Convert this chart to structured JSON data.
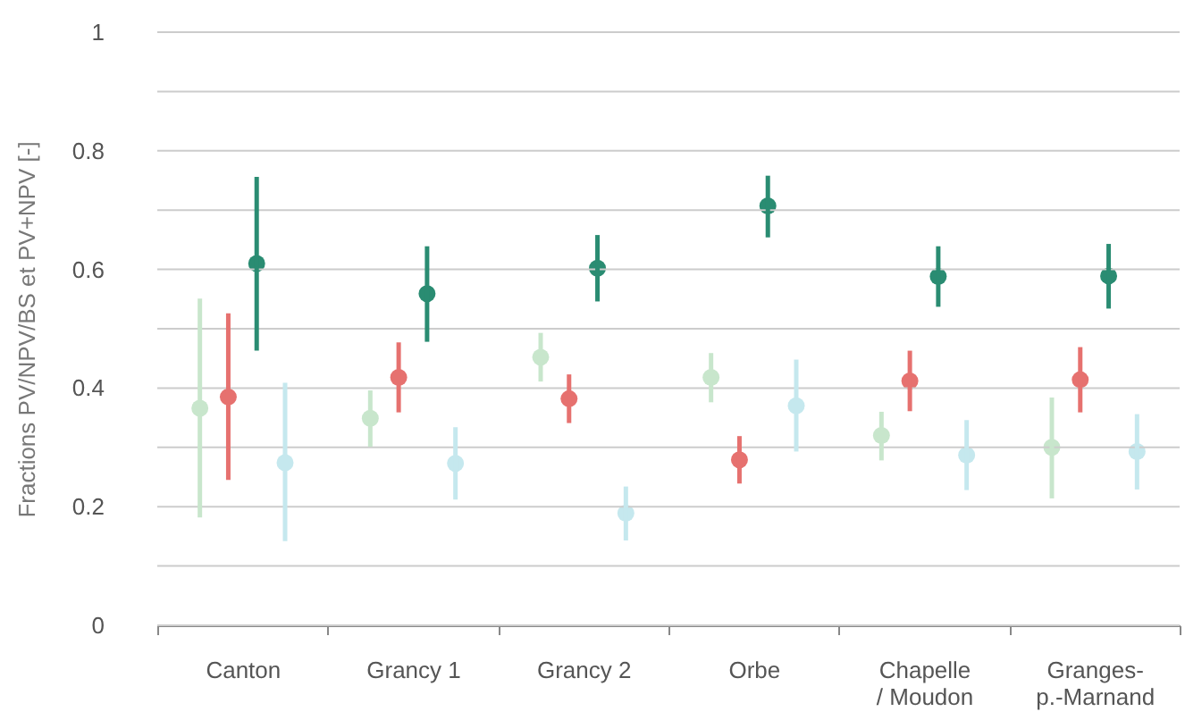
{
  "chart_data": {
    "type": "scatter",
    "ylabel": "Fractions PV/NPV/BS et PV+NPV [-]",
    "categories": [
      "Canton",
      "Grancy 1",
      "Grancy 2",
      "Orbe",
      "Chapelle\n/ Moudon",
      "Granges-\np.-Marnand"
    ],
    "ylim": [
      0,
      1
    ],
    "yticks": [
      0,
      {
        "value": 0.1,
        "label": null
      },
      0.2,
      {
        "value": 0.3,
        "label": null
      },
      0.4,
      {
        "value": 0.5,
        "label": null
      },
      0.6,
      {
        "value": 0.7,
        "label": null
      },
      0.8,
      {
        "value": 0.9,
        "label": null
      },
      1
    ],
    "grid": "y",
    "marker": "circle",
    "series": [
      {
        "color": "#c8e6cc",
        "values": [
          0.366,
          0.349,
          0.452,
          0.418,
          0.32,
          0.3
        ],
        "errors": [
          [
            0.182,
            0.551
          ],
          [
            0.301,
            0.396
          ],
          [
            0.411,
            0.493
          ],
          [
            0.376,
            0.459
          ],
          [
            0.278,
            0.36
          ],
          [
            0.214,
            0.384
          ]
        ]
      },
      {
        "color": "#e6716f",
        "values": [
          0.385,
          0.418,
          0.382,
          0.279,
          0.412,
          0.414
        ],
        "errors": [
          [
            0.245,
            0.526
          ],
          [
            0.359,
            0.477
          ],
          [
            0.341,
            0.423
          ],
          [
            0.239,
            0.319
          ],
          [
            0.361,
            0.463
          ],
          [
            0.359,
            0.469
          ]
        ]
      },
      {
        "color": "#2a8c72",
        "values": [
          0.61,
          0.559,
          0.602,
          0.707,
          0.588,
          0.589
        ],
        "errors": [
          [
            0.463,
            0.756
          ],
          [
            0.478,
            0.639
          ],
          [
            0.546,
            0.658
          ],
          [
            0.654,
            0.758
          ],
          [
            0.537,
            0.639
          ],
          [
            0.534,
            0.643
          ]
        ]
      },
      {
        "color": "#c5e8ee",
        "values": [
          0.274,
          0.273,
          0.189,
          0.37,
          0.287,
          0.293
        ],
        "errors": [
          [
            0.142,
            0.409
          ],
          [
            0.212,
            0.334
          ],
          [
            0.143,
            0.234
          ],
          [
            0.293,
            0.448
          ],
          [
            0.228,
            0.346
          ],
          [
            0.229,
            0.356
          ]
        ]
      }
    ]
  }
}
